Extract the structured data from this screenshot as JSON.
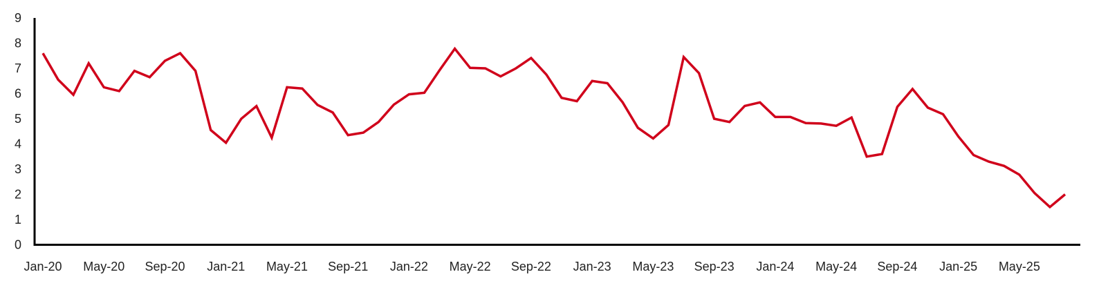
{
  "chart_data": {
    "type": "line",
    "title": "",
    "xlabel": "",
    "ylabel": "",
    "ylim": [
      0,
      9
    ],
    "yticks": [
      "0",
      "1",
      "2",
      "3",
      "4",
      "5",
      "6",
      "7",
      "8",
      "9"
    ],
    "grid": false,
    "legend": "none",
    "line_color": "#d0021b",
    "xtick_labels": [
      "Jan-20",
      "May-20",
      "Sep-20",
      "Jan-21",
      "May-21",
      "Sep-21",
      "Jan-22",
      "May-22",
      "Sep-22",
      "Jan-23",
      "May-23",
      "Sep-23",
      "Jan-24",
      "May-24",
      "Sep-24",
      "Jan-25",
      "May-25"
    ],
    "x": [
      "Jan-20",
      "Feb-20",
      "Mar-20",
      "Apr-20",
      "May-20",
      "Jun-20",
      "Jul-20",
      "Aug-20",
      "Sep-20",
      "Oct-20",
      "Nov-20",
      "Dec-20",
      "Jan-21",
      "Feb-21",
      "Mar-21",
      "Apr-21",
      "May-21",
      "Jun-21",
      "Jul-21",
      "Aug-21",
      "Sep-21",
      "Oct-21",
      "Nov-21",
      "Dec-21",
      "Jan-22",
      "Feb-22",
      "Mar-22",
      "Apr-22",
      "May-22",
      "Jun-22",
      "Jul-22",
      "Aug-22",
      "Sep-22",
      "Oct-22",
      "Nov-22",
      "Dec-22",
      "Jan-23",
      "Feb-23",
      "Mar-23",
      "Apr-23",
      "May-23",
      "Jun-23",
      "Jul-23",
      "Aug-23",
      "Sep-23",
      "Oct-23",
      "Nov-23",
      "Dec-23",
      "Jan-24",
      "Feb-24",
      "Mar-24",
      "Apr-24",
      "May-24",
      "Jun-24",
      "Jul-24",
      "Aug-24",
      "Sep-24",
      "Oct-24",
      "Nov-24",
      "Dec-24",
      "Jan-25",
      "Feb-25",
      "Mar-25",
      "Apr-25",
      "May-25",
      "Jun-25",
      "Jul-25",
      "Aug-25"
    ],
    "series": [
      {
        "values": [
          7.6,
          6.55,
          5.95,
          7.2,
          6.25,
          6.1,
          6.9,
          6.65,
          7.3,
          7.6,
          6.9,
          4.55,
          4.05,
          5.0,
          5.5,
          4.25,
          6.25,
          6.2,
          5.55,
          5.25,
          4.35,
          4.45,
          4.87,
          5.56,
          5.97,
          6.03,
          6.93,
          7.78,
          7.02,
          7.0,
          6.68,
          7.0,
          7.41,
          6.75,
          5.83,
          5.7,
          6.5,
          6.41,
          5.65,
          4.64,
          4.22,
          4.75,
          7.45,
          6.81,
          5.0,
          4.87,
          5.51,
          5.65,
          5.07,
          5.07,
          4.83,
          4.81,
          4.72,
          5.05,
          3.5,
          3.6,
          5.47,
          6.18,
          5.44,
          5.18,
          4.3,
          3.56,
          3.3,
          3.13,
          2.78,
          2.05,
          1.5,
          2.0
        ]
      }
    ]
  }
}
